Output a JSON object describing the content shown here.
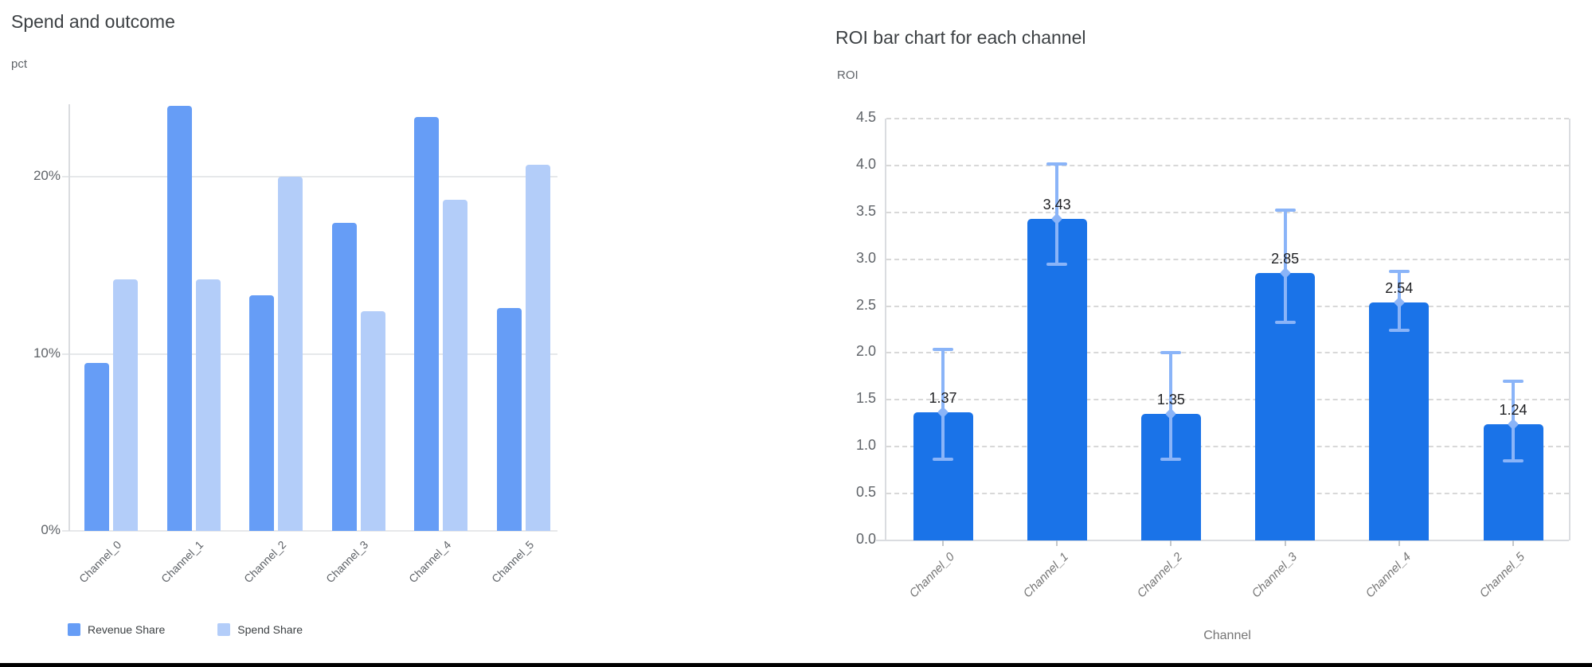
{
  "chart_data": [
    {
      "type": "bar",
      "title": "Spend and outcome",
      "ylabel": "pct",
      "xlabel": "",
      "categories": [
        "Channel_0",
        "Channel_1",
        "Channel_2",
        "Channel_3",
        "Channel_4",
        "Channel_5"
      ],
      "series": [
        {
          "name": "Revenue Share",
          "color": "#669df6",
          "values": [
            9.5,
            24.0,
            13.3,
            17.4,
            23.4,
            12.6
          ]
        },
        {
          "name": "Spend Share",
          "color": "#b3cdf9",
          "values": [
            14.2,
            14.2,
            20.0,
            12.4,
            18.7,
            20.7
          ]
        }
      ],
      "y_ticks": [
        {
          "value": 0,
          "label": "0%"
        },
        {
          "value": 10,
          "label": "10%"
        },
        {
          "value": 20,
          "label": "20%"
        }
      ],
      "ylim": [
        0,
        24.1
      ],
      "unit": "percent",
      "grid": "solid-horizontal",
      "legend_position": "bottom-left"
    },
    {
      "type": "bar",
      "title": "ROI bar chart for each channel",
      "ylabel": "ROI",
      "xlabel": "Channel",
      "categories": [
        "Channel_0",
        "Channel_1",
        "Channel_2",
        "Channel_3",
        "Channel_4",
        "Channel_5"
      ],
      "values": [
        1.37,
        3.43,
        1.35,
        2.85,
        2.54,
        1.24
      ],
      "value_labels": [
        "1.37",
        "3.43",
        "1.35",
        "2.85",
        "2.54",
        "1.24"
      ],
      "error_low": [
        0.87,
        2.95,
        0.87,
        2.33,
        2.24,
        0.85
      ],
      "error_high": [
        2.04,
        4.02,
        2.0,
        3.52,
        2.87,
        1.7
      ],
      "bar_color": "#1a73e8",
      "error_bar_color": "#8ab4f8",
      "y_ticks": [
        {
          "value": 0.0,
          "label": "0.0"
        },
        {
          "value": 0.5,
          "label": "0.5"
        },
        {
          "value": 1.0,
          "label": "1.0"
        },
        {
          "value": 1.5,
          "label": "1.5"
        },
        {
          "value": 2.0,
          "label": "2.0"
        },
        {
          "value": 2.5,
          "label": "2.5"
        },
        {
          "value": 3.0,
          "label": "3.0"
        },
        {
          "value": 3.5,
          "label": "3.5"
        },
        {
          "value": 4.0,
          "label": "4.0"
        },
        {
          "value": 4.5,
          "label": "4.5"
        }
      ],
      "ylim": [
        0,
        4.5
      ],
      "grid": "dashed-horizontal",
      "legend_position": "none"
    }
  ],
  "colors": {
    "background": "#ffffff",
    "title_text": "#3c4043",
    "tick_text": "#5f6368",
    "axis_line": "#dadce0",
    "bottom_border": "#000000"
  }
}
